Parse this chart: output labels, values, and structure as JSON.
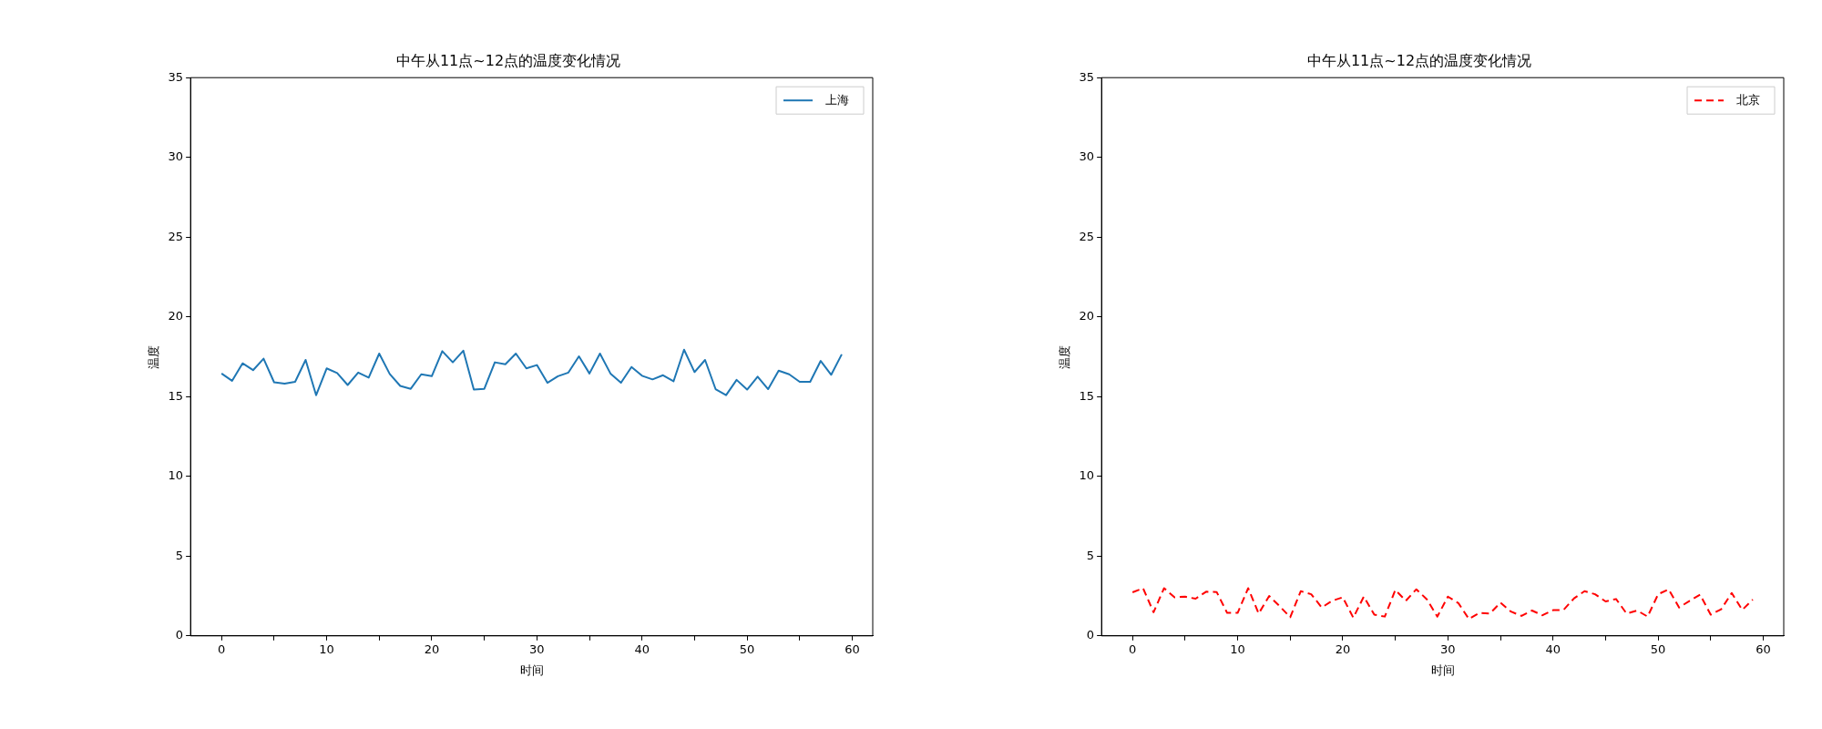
{
  "chart_data": [
    {
      "type": "line",
      "title": "中午从11点~12点的温度变化情况",
      "xlabel": "时间",
      "ylabel": "温度",
      "x": [
        0,
        1,
        2,
        3,
        4,
        5,
        6,
        7,
        8,
        9,
        10,
        11,
        12,
        13,
        14,
        15,
        16,
        17,
        18,
        19,
        20,
        21,
        22,
        23,
        24,
        25,
        26,
        27,
        28,
        29,
        30,
        31,
        32,
        33,
        34,
        35,
        36,
        37,
        38,
        39,
        40,
        41,
        42,
        43,
        44,
        45,
        46,
        47,
        48,
        49,
        50,
        51,
        52,
        53,
        54,
        55,
        56,
        57,
        58,
        59
      ],
      "series": [
        {
          "name": "上海",
          "color": "#1f77b4",
          "line_style": "solid",
          "values": [
            16.45,
            15.99,
            17.09,
            16.66,
            17.38,
            15.9,
            15.81,
            15.93,
            17.3,
            15.09,
            16.77,
            16.48,
            15.73,
            16.51,
            16.19,
            17.7,
            16.42,
            15.67,
            15.49,
            16.4,
            16.28,
            17.85,
            17.15,
            17.88,
            15.44,
            15.49,
            17.15,
            17.03,
            17.7,
            16.77,
            16.98,
            15.87,
            16.28,
            16.51,
            17.53,
            16.45,
            17.7,
            16.45,
            15.87,
            16.86,
            16.31,
            16.08,
            16.34,
            15.96,
            17.94,
            16.54,
            17.3,
            15.47,
            15.09,
            16.05,
            15.44,
            16.25,
            15.47,
            16.63,
            16.4,
            15.93,
            15.93,
            17.24,
            16.37,
            17.65
          ]
        }
      ],
      "xlim": [
        -2.95,
        61.95
      ],
      "xticks": [
        0,
        {
          "value": 5,
          "label": null
        },
        10,
        {
          "value": 15,
          "label": null
        },
        20,
        {
          "value": 25,
          "label": null
        },
        30,
        {
          "value": 35,
          "label": null
        },
        40,
        {
          "value": 45,
          "label": null
        },
        50,
        {
          "value": 55,
          "label": null
        },
        60
      ],
      "ylim": [
        0,
        35
      ],
      "yticks": [
        0,
        5,
        10,
        15,
        20,
        25,
        30,
        35
      ],
      "legend": "top right",
      "grid": false
    },
    {
      "type": "line",
      "title": "中午从11点~12点的温度变化情况",
      "xlabel": "时间",
      "ylabel": "温度",
      "x": [
        0,
        1,
        2,
        3,
        4,
        5,
        6,
        7,
        8,
        9,
        10,
        11,
        12,
        13,
        14,
        15,
        16,
        17,
        18,
        19,
        20,
        21,
        22,
        23,
        24,
        25,
        26,
        27,
        28,
        29,
        30,
        31,
        32,
        33,
        34,
        35,
        36,
        37,
        38,
        39,
        40,
        41,
        42,
        43,
        44,
        45,
        46,
        47,
        48,
        49,
        50,
        51,
        52,
        53,
        54,
        55,
        56,
        57,
        58,
        59
      ],
      "series": [
        {
          "name": "北京",
          "color": "#ff0000",
          "line_style": "dashed",
          "values": [
            2.73,
            2.99,
            1.48,
            2.99,
            2.42,
            2.46,
            2.33,
            2.77,
            2.75,
            1.44,
            1.44,
            2.99,
            1.4,
            2.5,
            1.86,
            1.17,
            2.8,
            2.61,
            1.78,
            2.2,
            2.42,
            1.14,
            2.46,
            1.33,
            1.21,
            2.88,
            2.2,
            2.92,
            2.29,
            1.21,
            2.46,
            2.05,
            1.06,
            1.44,
            1.4,
            2.08,
            1.52,
            1.25,
            1.59,
            1.29,
            1.61,
            1.63,
            2.35,
            2.8,
            2.61,
            2.16,
            2.31,
            1.4,
            1.59,
            1.21,
            2.61,
            2.92,
            1.78,
            2.2,
            2.58,
            1.33,
            1.67,
            2.69,
            1.63,
            2.27
          ]
        }
      ],
      "xlim": [
        -2.95,
        61.95
      ],
      "xticks": [
        0,
        {
          "value": 5,
          "label": null
        },
        10,
        {
          "value": 15,
          "label": null
        },
        20,
        {
          "value": 25,
          "label": null
        },
        30,
        {
          "value": 35,
          "label": null
        },
        40,
        {
          "value": 45,
          "label": null
        },
        50,
        {
          "value": 55,
          "label": null
        },
        60
      ],
      "ylim": [
        0,
        35
      ],
      "yticks": [
        0,
        5,
        10,
        15,
        20,
        25,
        30,
        35
      ],
      "legend": "top right",
      "grid": false
    }
  ]
}
